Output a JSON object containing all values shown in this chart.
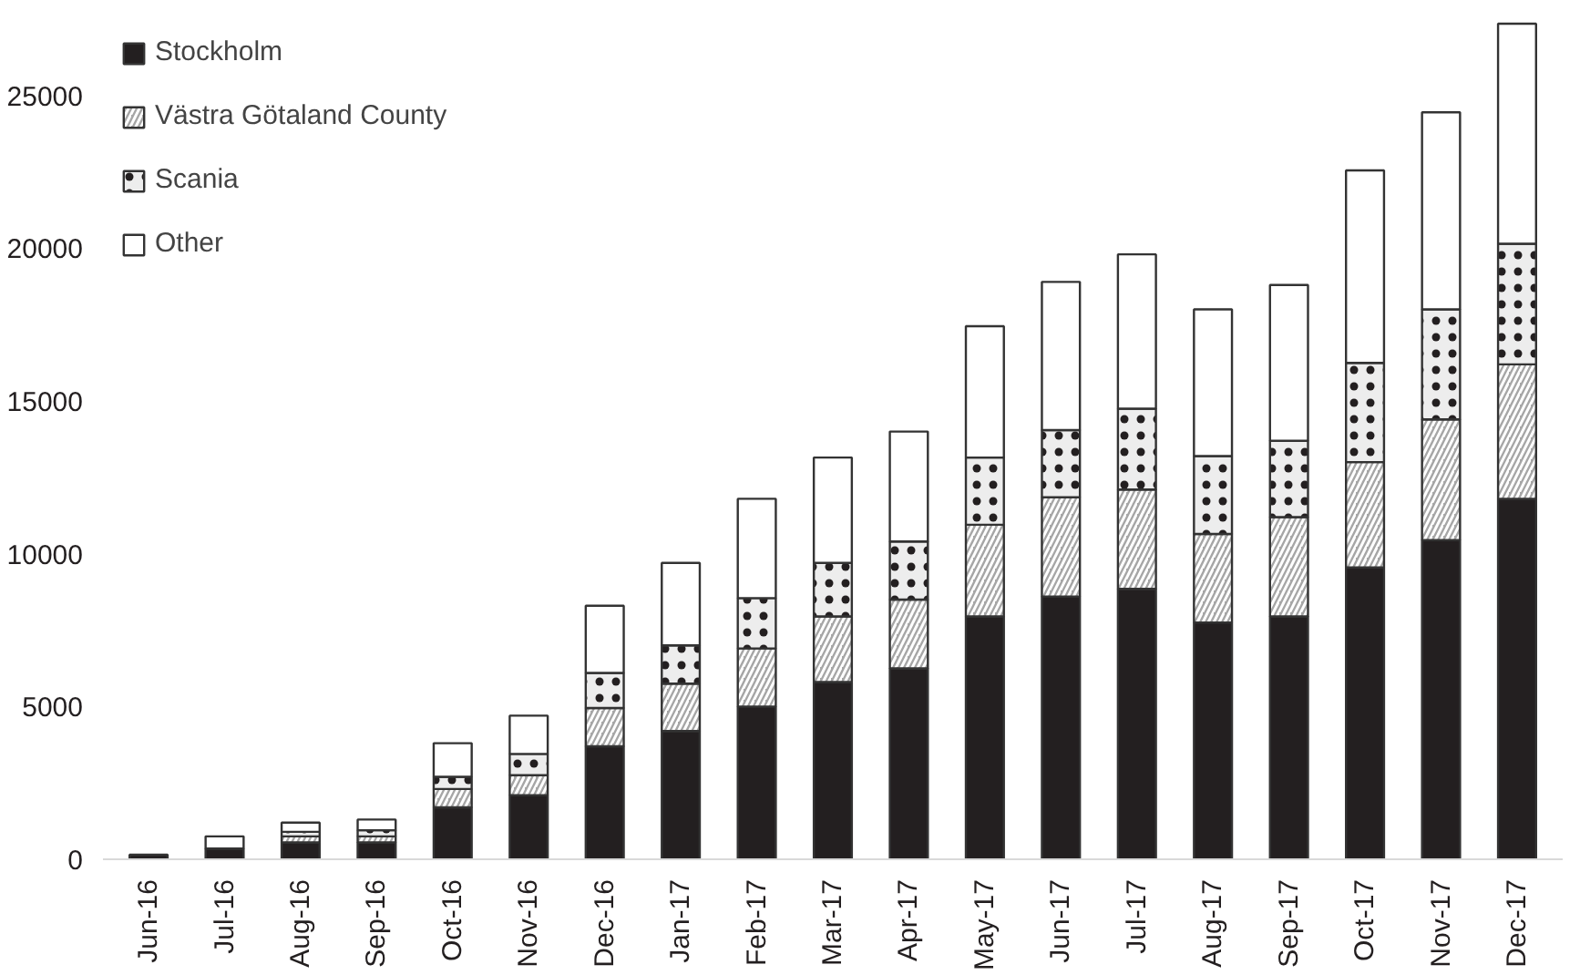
{
  "chart_data": {
    "type": "bar",
    "stacked": true,
    "categories": [
      "Jun-16",
      "Jul-16",
      "Aug-16",
      "Sep-16",
      "Oct-16",
      "Nov-16",
      "Dec-16",
      "Jan-17",
      "Feb-17",
      "Mar-17",
      "Apr-17",
      "May-17",
      "Jun-17",
      "Jul-17",
      "Aug-17",
      "Sep-17",
      "Oct-17",
      "Nov-17",
      "Dec-17"
    ],
    "series": [
      {
        "name": "Stockholm",
        "color": "#231f20",
        "values": [
          150,
          350,
          550,
          550,
          1700,
          2100,
          3700,
          4200,
          5000,
          5800,
          6250,
          7950,
          8600,
          8850,
          7750,
          7950,
          9550,
          10450,
          11800
        ]
      },
      {
        "name": "Västra Götaland County",
        "color": "#a6a6a6",
        "values": [
          null,
          null,
          200,
          200,
          600,
          650,
          1250,
          1550,
          1900,
          2150,
          2250,
          3000,
          3250,
          3250,
          2900,
          3250,
          3450,
          3950,
          4400
        ]
      },
      {
        "name": "Scania",
        "color": "#ededed",
        "values": [
          null,
          null,
          150,
          200,
          400,
          700,
          1150,
          1250,
          1650,
          1750,
          1900,
          2200,
          2200,
          2650,
          2550,
          2500,
          3250,
          3600,
          3950
        ]
      },
      {
        "name": "Other",
        "color": "#ffffff",
        "values": [
          null,
          400,
          300,
          350,
          1100,
          1250,
          2200,
          2700,
          3250,
          3450,
          3600,
          4300,
          4850,
          5050,
          4800,
          5100,
          6300,
          6450,
          7200
        ]
      }
    ],
    "ylim": [
      0,
      27500
    ],
    "yticks": [
      0,
      5000,
      10000,
      15000,
      20000,
      25000
    ],
    "grid": false,
    "legend": "top left"
  }
}
